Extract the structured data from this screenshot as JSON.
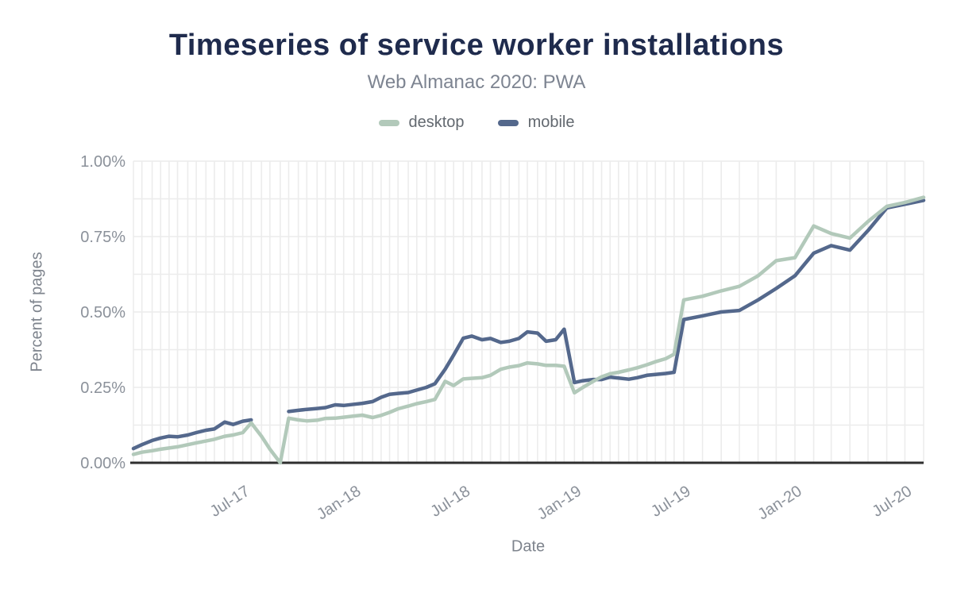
{
  "title": "Timeseries of service worker installations",
  "subtitle": "Web Almanac 2020: PWA",
  "legend": {
    "items": [
      {
        "label": "desktop",
        "color": "#b2c9ba"
      },
      {
        "label": "mobile",
        "color": "#54688c"
      }
    ]
  },
  "y_axis": {
    "title": "Percent of pages"
  },
  "x_axis": {
    "title": "Date"
  },
  "colors": {
    "title": "#1f2b4d",
    "subtitle": "#7d8491",
    "tick_label": "#8b919a",
    "gridline": "#ececec",
    "axis_line": "#2e2e2e",
    "desktop_line": "#b2c9ba",
    "mobile_line": "#54688c"
  },
  "chart_data": {
    "type": "line",
    "title": "Timeseries of service worker installations",
    "subtitle": "Web Almanac 2020: PWA",
    "xlabel": "Date",
    "ylabel": "Percent of pages",
    "ylim": [
      0,
      1.0
    ],
    "y_major_ticks": [
      0,
      0.25,
      0.5,
      0.75,
      1.0
    ],
    "y_tick_labels": [
      "0.00%",
      "0.25%",
      "0.50%",
      "0.75%",
      "1.00%"
    ],
    "y_minor_step": 0.125,
    "grid": "on",
    "legend_position": "top-center",
    "x_ticks": [
      {
        "date": "2017-07-01",
        "label": "Jul-17"
      },
      {
        "date": "2018-01-01",
        "label": "Jan-18"
      },
      {
        "date": "2018-07-01",
        "label": "Jul-18"
      },
      {
        "date": "2019-01-01",
        "label": "Jan-19"
      },
      {
        "date": "2019-07-01",
        "label": "Jul-19"
      },
      {
        "date": "2020-01-01",
        "label": "Jan-20"
      },
      {
        "date": "2020-07-01",
        "label": "Jul-20"
      }
    ],
    "x": [
      "2017-01-01",
      "2017-01-15",
      "2017-02-01",
      "2017-02-15",
      "2017-03-01",
      "2017-03-15",
      "2017-04-01",
      "2017-04-15",
      "2017-05-01",
      "2017-05-15",
      "2017-06-01",
      "2017-06-15",
      "2017-07-01",
      "2017-07-15",
      "2017-08-01",
      "2017-08-15",
      "2017-09-01",
      "2017-09-15",
      "2017-10-01",
      "2017-10-15",
      "2017-11-01",
      "2017-11-15",
      "2017-12-01",
      "2017-12-15",
      "2018-01-01",
      "2018-01-15",
      "2018-02-01",
      "2018-02-15",
      "2018-03-01",
      "2018-03-15",
      "2018-04-01",
      "2018-04-15",
      "2018-05-01",
      "2018-05-15",
      "2018-06-01",
      "2018-06-15",
      "2018-07-01",
      "2018-07-15",
      "2018-08-01",
      "2018-08-15",
      "2018-09-01",
      "2018-09-15",
      "2018-10-01",
      "2018-10-15",
      "2018-11-01",
      "2018-11-15",
      "2018-12-01",
      "2018-12-15",
      "2019-01-01",
      "2019-01-15",
      "2019-02-01",
      "2019-02-15",
      "2019-03-01",
      "2019-03-15",
      "2019-04-01",
      "2019-04-15",
      "2019-05-01",
      "2019-05-15",
      "2019-06-01",
      "2019-06-15",
      "2019-07-01",
      "2019-08-01",
      "2019-09-01",
      "2019-10-01",
      "2019-11-01",
      "2019-12-01",
      "2020-01-01",
      "2020-02-01",
      "2020-03-01",
      "2020-04-01",
      "2020-05-01",
      "2020-06-01",
      "2020-07-01",
      "2020-08-01"
    ],
    "series": [
      {
        "name": "desktop",
        "color": "#b2c9ba",
        "values": [
          0.028,
          0.035,
          0.04,
          0.045,
          0.049,
          0.053,
          0.06,
          0.066,
          0.072,
          0.078,
          0.088,
          0.092,
          0.1,
          0.132,
          0.088,
          0.045,
          0.0,
          0.148,
          0.142,
          0.139,
          0.141,
          0.147,
          0.148,
          0.151,
          0.155,
          0.158,
          0.15,
          0.157,
          0.167,
          0.179,
          0.188,
          0.196,
          0.203,
          0.21,
          0.27,
          0.256,
          0.278,
          0.28,
          0.282,
          0.29,
          0.31,
          0.317,
          0.322,
          0.331,
          0.328,
          0.323,
          0.323,
          0.32,
          0.232,
          0.25,
          0.27,
          0.285,
          0.295,
          0.3,
          0.308,
          0.315,
          0.325,
          0.335,
          0.345,
          0.36,
          0.54,
          0.552,
          0.57,
          0.585,
          0.62,
          0.67,
          0.68,
          0.785,
          0.76,
          0.745,
          0.8,
          0.85,
          0.863,
          0.88
        ]
      },
      {
        "name": "mobile",
        "color": "#54688c",
        "values": [
          0.047,
          0.06,
          0.074,
          0.082,
          0.088,
          0.086,
          0.092,
          0.1,
          0.108,
          0.112,
          0.135,
          0.127,
          0.138,
          0.142,
          null,
          null,
          null,
          0.17,
          0.174,
          0.177,
          0.18,
          0.183,
          0.192,
          0.19,
          0.194,
          0.197,
          0.203,
          0.217,
          0.227,
          0.23,
          0.233,
          0.241,
          0.25,
          0.262,
          0.31,
          0.357,
          0.413,
          0.42,
          0.408,
          0.412,
          0.399,
          0.403,
          0.412,
          0.434,
          0.43,
          0.403,
          0.408,
          0.443,
          0.266,
          0.272,
          0.276,
          0.276,
          0.284,
          0.281,
          0.277,
          0.282,
          0.29,
          0.293,
          0.296,
          0.3,
          0.475,
          0.487,
          0.5,
          0.505,
          0.54,
          0.578,
          0.62,
          0.695,
          0.72,
          0.705,
          0.77,
          0.845,
          0.857,
          0.87
        ]
      }
    ]
  }
}
